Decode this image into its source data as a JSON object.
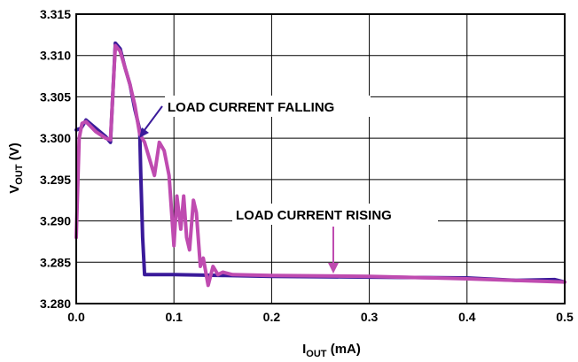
{
  "chart_data": {
    "type": "line",
    "title": "",
    "xlabel": {
      "main": "I",
      "sub": "OUT",
      "unit": " (mA)"
    },
    "ylabel": {
      "main": "V",
      "sub": "OUT",
      "unit": " (V)"
    },
    "xlim": [
      0,
      0.5
    ],
    "ylim": [
      3.28,
      3.315
    ],
    "x_ticks": [
      0.0,
      0.1,
      0.2,
      0.3,
      0.4,
      0.5
    ],
    "x_tick_labels": [
      "0.0",
      "0.1",
      "0.2",
      "0.3",
      "0.4",
      "0.5"
    ],
    "y_ticks": [
      3.28,
      3.285,
      3.29,
      3.295,
      3.3,
      3.305,
      3.31,
      3.315
    ],
    "y_tick_labels": [
      "3.280",
      "3.285",
      "3.290",
      "3.295",
      "3.300",
      "3.305",
      "3.310",
      "3.315"
    ],
    "grid": true,
    "series": [
      {
        "name": "LOAD CURRENT FALLING",
        "color": "#3a1a9a",
        "x": [
          0.0,
          0.005,
          0.01,
          0.02,
          0.03,
          0.035,
          0.04,
          0.045,
          0.05,
          0.055,
          0.06,
          0.065,
          0.066,
          0.068,
          0.07,
          0.08,
          0.1,
          0.15,
          0.2,
          0.3,
          0.4,
          0.45,
          0.49,
          0.5
        ],
        "y": [
          3.301,
          3.3012,
          3.3022,
          3.3012,
          3.3002,
          3.2995,
          3.3115,
          3.3108,
          3.3085,
          3.3065,
          3.3035,
          3.301,
          3.296,
          3.288,
          3.2835,
          3.2835,
          3.2835,
          3.2834,
          3.2833,
          3.2832,
          3.2831,
          3.2828,
          3.2829,
          3.2826
        ]
      },
      {
        "name": "LOAD CURRENT RISING",
        "color": "#bf4bb0",
        "x": [
          0.0,
          0.003,
          0.006,
          0.01,
          0.02,
          0.03,
          0.035,
          0.04,
          0.045,
          0.05,
          0.055,
          0.06,
          0.065,
          0.07,
          0.075,
          0.08,
          0.085,
          0.09,
          0.095,
          0.1,
          0.103,
          0.107,
          0.11,
          0.113,
          0.116,
          0.12,
          0.123,
          0.127,
          0.13,
          0.135,
          0.14,
          0.145,
          0.15,
          0.16,
          0.2,
          0.3,
          0.4,
          0.5
        ],
        "y": [
          3.288,
          3.3,
          3.3018,
          3.302,
          3.3008,
          3.3,
          3.2998,
          3.3112,
          3.3105,
          3.3085,
          3.3065,
          3.304,
          3.3005,
          3.2995,
          3.2975,
          3.2955,
          3.2995,
          3.2985,
          3.2955,
          3.287,
          3.293,
          3.289,
          3.293,
          3.288,
          3.2865,
          3.2925,
          3.291,
          3.2845,
          3.2855,
          3.2822,
          3.2845,
          3.2835,
          3.2838,
          3.2835,
          3.2834,
          3.2833,
          3.283,
          3.2826
        ]
      }
    ],
    "annotations": [
      {
        "text": "LOAD CURRENT FALLING",
        "points_to": {
          "x": 0.065,
          "y": 3.3005
        }
      },
      {
        "text": "LOAD CURRENT RISING",
        "points_to": {
          "x": 0.265,
          "y": 3.2833
        }
      }
    ]
  }
}
